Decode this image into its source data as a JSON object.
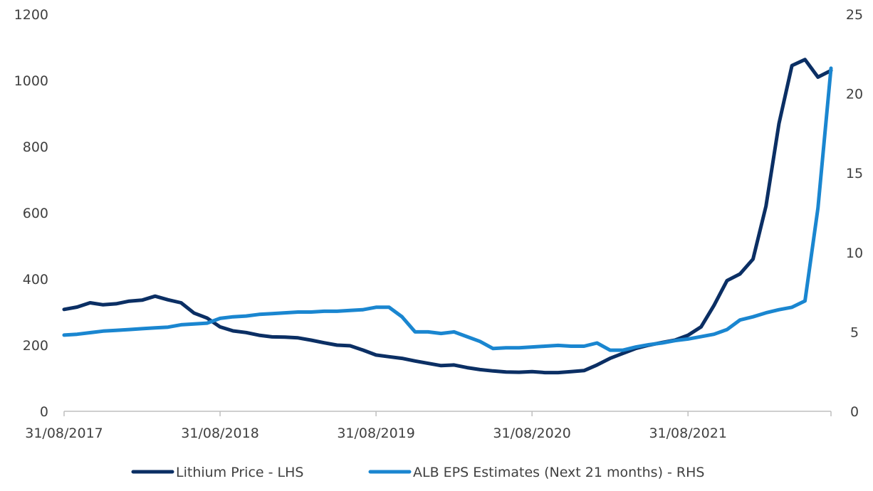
{
  "chart_data": {
    "type": "line",
    "title": "",
    "xlabel": "",
    "ylabel": "",
    "x_tick_labels": [
      "31/08/2017",
      "31/08/2018",
      "31/08/2019",
      "31/08/2020",
      "31/08/2021"
    ],
    "y_left": {
      "min": 0,
      "max": 1200,
      "ticks": [
        0,
        200,
        400,
        600,
        800,
        1000,
        1200
      ]
    },
    "y_right": {
      "min": 0,
      "max": 25,
      "ticks": [
        0,
        5,
        10,
        15,
        20,
        25
      ]
    },
    "grid": false,
    "legend_position": "bottom",
    "x": [
      "2017-08-31",
      "2017-09-30",
      "2017-10-31",
      "2017-11-30",
      "2017-12-31",
      "2018-01-31",
      "2018-02-28",
      "2018-03-31",
      "2018-04-30",
      "2018-05-31",
      "2018-06-30",
      "2018-07-31",
      "2018-08-31",
      "2018-09-30",
      "2018-10-31",
      "2018-11-30",
      "2018-12-31",
      "2019-01-31",
      "2019-02-28",
      "2019-03-31",
      "2019-04-30",
      "2019-05-31",
      "2019-06-30",
      "2019-07-31",
      "2019-08-31",
      "2019-09-30",
      "2019-10-31",
      "2019-11-30",
      "2019-12-31",
      "2020-01-31",
      "2020-02-29",
      "2020-03-31",
      "2020-04-30",
      "2020-05-31",
      "2020-06-30",
      "2020-07-31",
      "2020-08-31",
      "2020-09-30",
      "2020-10-31",
      "2020-11-30",
      "2020-12-31",
      "2021-01-31",
      "2021-02-28",
      "2021-03-31",
      "2021-04-30",
      "2021-05-31",
      "2021-06-30",
      "2021-07-31",
      "2021-08-31",
      "2021-09-30",
      "2021-10-31",
      "2021-11-30",
      "2021-12-31",
      "2022-01-31",
      "2022-02-28",
      "2022-03-31",
      "2022-04-30",
      "2022-05-31",
      "2022-06-30",
      "2022-07-31"
    ],
    "series": [
      {
        "name": "Lithium Price - LHS",
        "axis": "left",
        "color": "#0b2f64",
        "values": [
          308,
          315,
          328,
          322,
          325,
          333,
          336,
          348,
          337,
          328,
          297,
          282,
          255,
          243,
          238,
          230,
          225,
          224,
          222,
          215,
          207,
          200,
          198,
          185,
          170,
          165,
          160,
          152,
          145,
          138,
          140,
          132,
          126,
          122,
          119,
          118,
          120,
          117,
          117,
          120,
          123,
          140,
          160,
          175,
          190,
          200,
          208,
          215,
          230,
          255,
          320,
          395,
          415,
          460,
          620,
          870,
          1045,
          1063,
          1010,
          1030
        ]
      },
      {
        "name": "ALB EPS Estimates (Next 21 months) - RHS",
        "axis": "right",
        "color": "#1a86d0",
        "values": [
          4.8,
          4.85,
          4.95,
          5.05,
          5.1,
          5.15,
          5.2,
          5.25,
          5.3,
          5.45,
          5.5,
          5.55,
          5.85,
          5.95,
          6.0,
          6.1,
          6.15,
          6.2,
          6.25,
          6.25,
          6.3,
          6.3,
          6.35,
          6.4,
          6.55,
          6.55,
          5.95,
          5.0,
          5.0,
          4.9,
          5.0,
          4.7,
          4.4,
          3.95,
          4.0,
          4.0,
          4.05,
          4.1,
          4.15,
          4.1,
          4.1,
          4.3,
          3.85,
          3.85,
          4.05,
          4.2,
          4.3,
          4.45,
          4.55,
          4.7,
          4.85,
          5.15,
          5.75,
          5.95,
          6.2,
          6.4,
          6.55,
          6.95,
          12.8,
          21.6
        ]
      }
    ]
  }
}
